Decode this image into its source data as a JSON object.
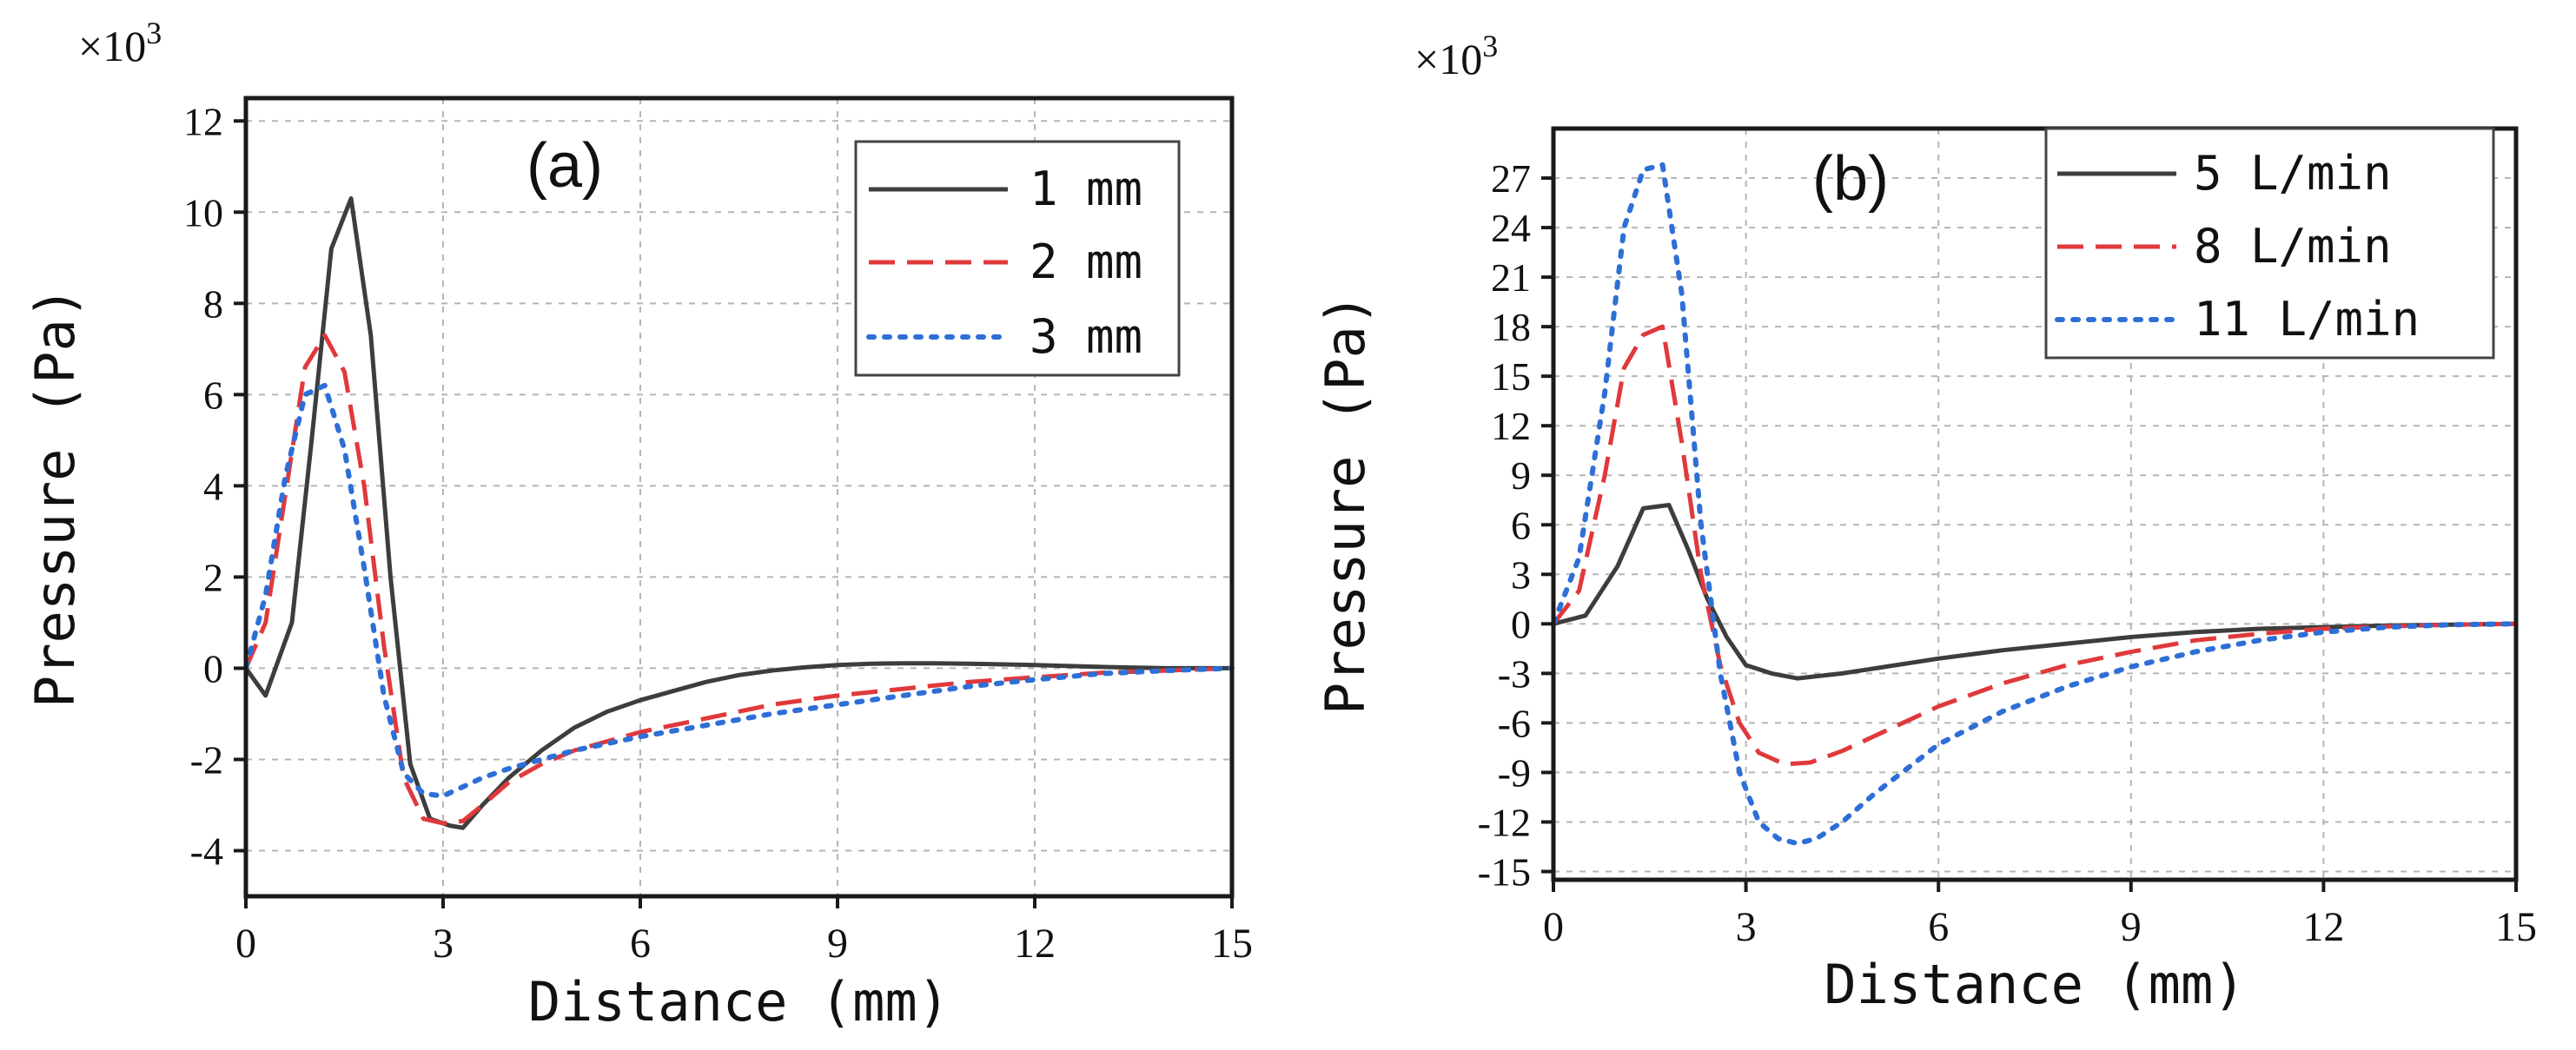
{
  "chart_data": [
    {
      "type": "line",
      "panel_label": "(a)",
      "multiplier": "×10",
      "multiplier_exp": "3",
      "xlabel": "Distance (mm)",
      "ylabel": "Pressure (Pa)",
      "xlim": [
        0,
        15
      ],
      "ylim": [
        -5,
        12.5
      ],
      "xticks": [
        0,
        3,
        6,
        9,
        12,
        15
      ],
      "yticks": [
        -4,
        -2,
        0,
        2,
        4,
        6,
        8,
        10,
        12
      ],
      "grid": true,
      "legend_position": "top-right",
      "series": [
        {
          "name": "1  mm",
          "color": "#3d3d3d",
          "dash": "solid",
          "x": [
            0,
            0.3,
            0.7,
            1.0,
            1.3,
            1.6,
            1.9,
            2.2,
            2.5,
            2.8,
            3.1,
            3.3,
            3.6,
            4.0,
            4.5,
            5.0,
            5.5,
            6.0,
            6.5,
            7.0,
            7.5,
            8.0,
            8.5,
            9.0,
            9.5,
            10.0,
            10.5,
            11.0,
            12.0,
            13.0,
            14.0,
            15.0
          ],
          "y": [
            0,
            -0.6,
            1.0,
            5.0,
            9.2,
            10.3,
            7.3,
            2.0,
            -2.1,
            -3.3,
            -3.45,
            -3.5,
            -3.0,
            -2.4,
            -1.8,
            -1.3,
            -0.95,
            -0.7,
            -0.5,
            -0.3,
            -0.15,
            -0.05,
            0.02,
            0.07,
            0.1,
            0.11,
            0.11,
            0.1,
            0.07,
            0.03,
            0.0,
            0.0
          ]
        },
        {
          "name": "2  mm",
          "color": "#e0393c",
          "dash": "dashed",
          "x": [
            0,
            0.3,
            0.6,
            0.9,
            1.2,
            1.5,
            1.8,
            2.1,
            2.4,
            2.7,
            3.0,
            3.3,
            3.6,
            4.0,
            4.5,
            5.0,
            5.5,
            6.0,
            7.0,
            8.0,
            9.0,
            10.0,
            11.0,
            12.0,
            13.0,
            14.0,
            15.0
          ],
          "y": [
            0,
            1.0,
            3.8,
            6.6,
            7.3,
            6.5,
            4.0,
            0.5,
            -2.4,
            -3.3,
            -3.4,
            -3.35,
            -3.0,
            -2.5,
            -2.1,
            -1.8,
            -1.6,
            -1.4,
            -1.1,
            -0.8,
            -0.6,
            -0.45,
            -0.3,
            -0.2,
            -0.1,
            -0.05,
            0.0
          ]
        },
        {
          "name": "3  mm",
          "color": "#2e6fd6",
          "dash": "dotted",
          "x": [
            0,
            0.3,
            0.6,
            0.9,
            1.2,
            1.5,
            1.8,
            2.1,
            2.4,
            2.7,
            3.0,
            3.3,
            3.6,
            4.0,
            4.5,
            5.0,
            5.5,
            6.0,
            7.0,
            8.0,
            9.0,
            10.0,
            11.0,
            12.0,
            13.0,
            14.0,
            15.0
          ],
          "y": [
            0,
            1.6,
            4.2,
            6.0,
            6.2,
            4.8,
            2.2,
            -0.6,
            -2.3,
            -2.75,
            -2.8,
            -2.6,
            -2.4,
            -2.2,
            -2.0,
            -1.8,
            -1.65,
            -1.5,
            -1.25,
            -1.0,
            -0.8,
            -0.6,
            -0.4,
            -0.25,
            -0.12,
            -0.05,
            0.0
          ]
        }
      ]
    },
    {
      "type": "line",
      "panel_label": "(b)",
      "multiplier": "×10",
      "multiplier_exp": "3",
      "xlabel": "Distance (mm)",
      "ylabel": "Pressure (Pa)",
      "xlim": [
        0,
        15
      ],
      "ylim": [
        -15.5,
        30
      ],
      "xticks": [
        0,
        3,
        6,
        9,
        12,
        15
      ],
      "yticks": [
        -15,
        -12,
        -9,
        -6,
        -3,
        0,
        3,
        6,
        9,
        12,
        15,
        18,
        21,
        24,
        27
      ],
      "grid": true,
      "legend_position": "top-right",
      "series": [
        {
          "name": "5 L/min",
          "color": "#3d3d3d",
          "dash": "solid",
          "x": [
            0,
            0.5,
            1.0,
            1.4,
            1.8,
            2.1,
            2.4,
            2.7,
            3.0,
            3.4,
            3.8,
            4.5,
            5.0,
            6.0,
            7.0,
            8.0,
            9.0,
            10.0,
            11.0,
            12.0,
            13.0,
            14.0,
            15.0
          ],
          "y": [
            0,
            0.5,
            3.5,
            7.0,
            7.2,
            4.5,
            1.5,
            -0.8,
            -2.5,
            -3.0,
            -3.3,
            -3.0,
            -2.7,
            -2.1,
            -1.6,
            -1.2,
            -0.8,
            -0.5,
            -0.3,
            -0.2,
            -0.1,
            -0.05,
            0.0
          ]
        },
        {
          "name": "8 L/min",
          "color": "#e0393c",
          "dash": "dashed",
          "x": [
            0,
            0.4,
            0.8,
            1.1,
            1.4,
            1.7,
            2.0,
            2.3,
            2.6,
            2.9,
            3.2,
            3.6,
            4.0,
            4.5,
            5.0,
            6.0,
            7.0,
            8.0,
            9.0,
            10.0,
            11.0,
            12.0,
            13.0,
            14.0,
            15.0
          ],
          "y": [
            0,
            2.0,
            9.0,
            15.5,
            17.5,
            18.0,
            11.0,
            3.0,
            -2.5,
            -6.0,
            -7.8,
            -8.5,
            -8.4,
            -7.7,
            -6.8,
            -5.0,
            -3.6,
            -2.5,
            -1.7,
            -1.0,
            -0.6,
            -0.3,
            -0.15,
            -0.05,
            0.0
          ]
        },
        {
          "name": "11 L/min",
          "color": "#2e6fd6",
          "dash": "dotted",
          "x": [
            0,
            0.4,
            0.8,
            1.1,
            1.4,
            1.7,
            2.0,
            2.3,
            2.6,
            2.9,
            3.2,
            3.5,
            3.8,
            4.1,
            4.5,
            5.0,
            5.5,
            6.0,
            7.0,
            8.0,
            9.0,
            10.0,
            11.0,
            12.0,
            13.0,
            14.0,
            15.0
          ],
          "y": [
            0,
            4.0,
            14.0,
            24.0,
            27.5,
            27.8,
            20.0,
            6.0,
            -3.0,
            -9.0,
            -12.0,
            -13.0,
            -13.3,
            -13.0,
            -12.0,
            -10.3,
            -8.8,
            -7.3,
            -5.3,
            -3.8,
            -2.6,
            -1.7,
            -1.0,
            -0.5,
            -0.2,
            -0.05,
            0.0
          ]
        }
      ]
    }
  ]
}
